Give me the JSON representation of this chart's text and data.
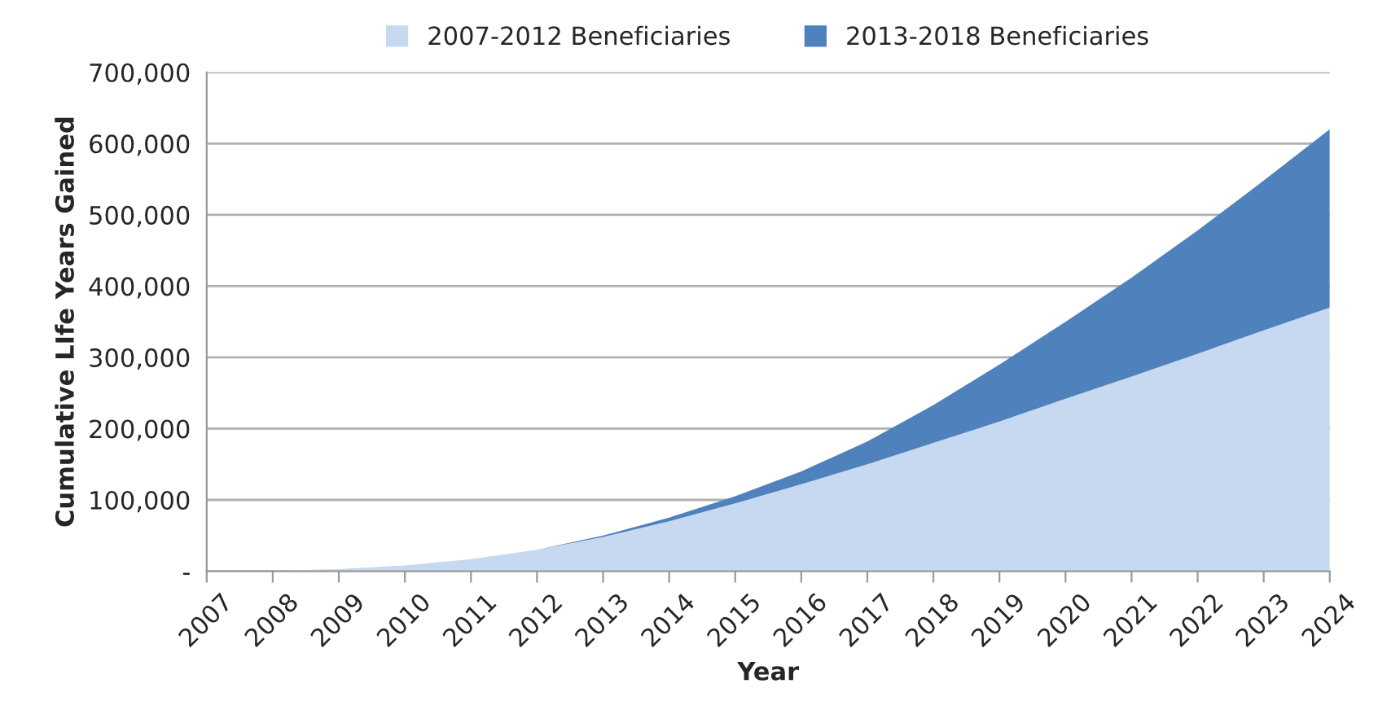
{
  "chart_data": {
    "type": "area",
    "stacked": true,
    "xlabel": "Year",
    "ylabel": "Cumulative LIfe Years Gained",
    "x": [
      2007,
      2008,
      2009,
      2010,
      2011,
      2012,
      2013,
      2014,
      2015,
      2016,
      2017,
      2018,
      2019,
      2020,
      2021,
      2022,
      2023,
      2024
    ],
    "series": [
      {
        "name": "2007-2012 Beneficiaries",
        "color": "#c6d9f0",
        "values": [
          0,
          1000,
          3000,
          8000,
          17000,
          30000,
          48000,
          70000,
          95000,
          122000,
          150000,
          180000,
          210000,
          242000,
          273000,
          305000,
          338000,
          370000
        ]
      },
      {
        "name": "2013-2018 Beneficiaries",
        "color": "#4f81bd",
        "values": [
          0,
          0,
          0,
          0,
          0,
          0,
          2000,
          5000,
          10000,
          18000,
          32000,
          53000,
          80000,
          108000,
          139000,
          173000,
          210000,
          250000
        ]
      }
    ],
    "xlim": [
      2007,
      2024
    ],
    "xticks": [
      2007,
      2008,
      2009,
      2010,
      2011,
      2012,
      2013,
      2014,
      2015,
      2016,
      2017,
      2018,
      2019,
      2020,
      2021,
      2022,
      2023,
      2024
    ],
    "ylim": [
      0,
      700000
    ],
    "yticks": [
      {
        "value": 0,
        "label": "-"
      },
      {
        "value": 100000,
        "label": "100,000"
      },
      {
        "value": 200000,
        "label": "200,000"
      },
      {
        "value": 300000,
        "label": "300,000"
      },
      {
        "value": 400000,
        "label": "400,000"
      },
      {
        "value": 500000,
        "label": "500,000"
      },
      {
        "value": 600000,
        "label": "600,000"
      },
      {
        "value": 700000,
        "label": "700,000"
      }
    ],
    "grid": "y",
    "legend": "top"
  }
}
